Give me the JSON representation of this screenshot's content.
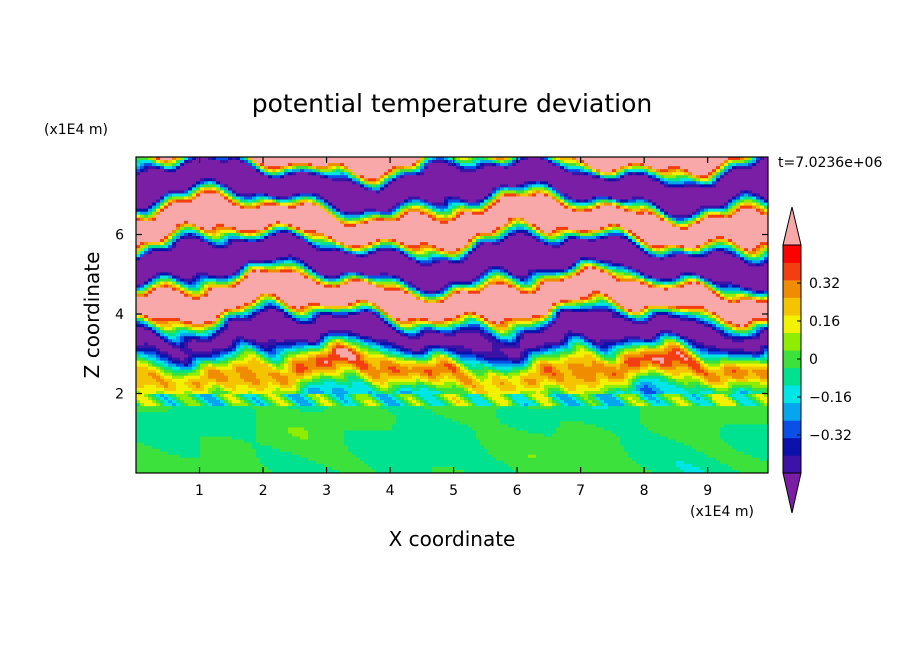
{
  "chart_data": {
    "type": "heatmap",
    "title": "potential temperature deviation",
    "xlabel": "X coordinate",
    "ylabel": "Z coordinate",
    "x_unit": "(x1E4 m)",
    "y_unit": "(x1E4 m)",
    "time_label": "t=7.0236e+06",
    "xlim": [
      0,
      9.95
    ],
    "ylim": [
      0,
      7.95
    ],
    "x_ticks": [
      "1",
      "2",
      "3",
      "4",
      "5",
      "6",
      "7",
      "8",
      "9"
    ],
    "y_ticks": [
      "2",
      "4",
      "6"
    ],
    "colorbar": {
      "levels": [
        -0.48,
        -0.4,
        -0.32,
        -0.24,
        -0.16,
        -0.08,
        0,
        0.08,
        0.16,
        0.24,
        0.32,
        0.4,
        0.48
      ],
      "tick_labels": [
        "0.32",
        "0.16",
        "0",
        "−0.16",
        "−0.32"
      ],
      "tick_values": [
        0.32,
        0.16,
        0,
        -0.16,
        -0.32
      ],
      "colors_low_to_high": [
        "#7a1fa5",
        "#3d12a6",
        "#0b11aa",
        "#0a50e6",
        "#05a6ee",
        "#00e5e5",
        "#00e28f",
        "#3ce13c",
        "#8fee00",
        "#f2f200",
        "#f5c400",
        "#f08c00",
        "#f23e11",
        "#ff0000",
        "#f8a8a8"
      ],
      "under_color": "#7a1fa5",
      "over_color": "#f8a8a8"
    },
    "structure": {
      "lower_layer_top_z": 2.0,
      "lower_layer_values": "approx. -0.08 to +0.08 (green)",
      "upper_layer_values": "alternating bands below -0.48 (purple) and above +0.48 (pink)"
    }
  }
}
